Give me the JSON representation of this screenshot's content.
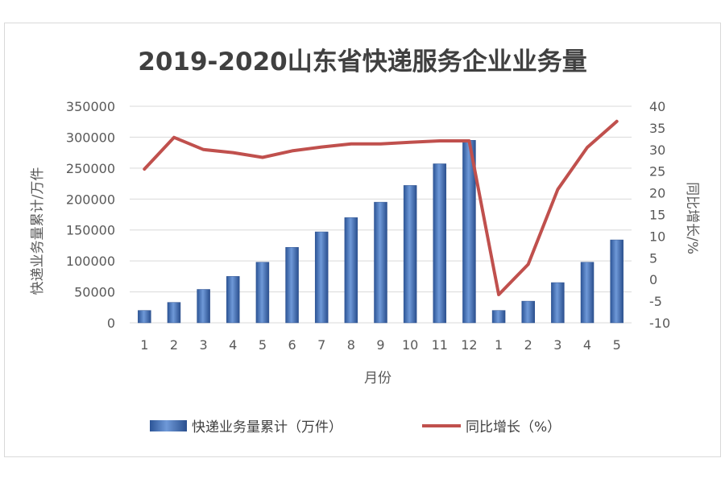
{
  "chart_data": {
    "type": "bar",
    "title": "2019-2020山东省快递服务企业业务量",
    "xlabel": "月份",
    "ylabel": "快递业务量累计/万件",
    "y2label": "同比增长/%",
    "categories": [
      "1",
      "2",
      "3",
      "4",
      "5",
      "6",
      "7",
      "8",
      "9",
      "10",
      "11",
      "12",
      "1",
      "2",
      "3",
      "4",
      "5"
    ],
    "ylim": [
      0,
      350000
    ],
    "yticks": [
      "0",
      "50000",
      "100000",
      "150000",
      "200000",
      "250000",
      "300000",
      "350000"
    ],
    "y2lim": [
      -10,
      40
    ],
    "y2ticks": [
      "-10",
      "-5",
      "0",
      "5",
      "10",
      "15",
      "20",
      "25",
      "30",
      "35",
      "40"
    ],
    "series": [
      {
        "name": "快递业务量累计（万件）",
        "type": "bar",
        "axis": "left",
        "color": "#4472c4",
        "values": [
          20000,
          33000,
          54000,
          75000,
          98000,
          122000,
          147000,
          170000,
          195000,
          222000,
          257000,
          295000,
          20000,
          35000,
          65000,
          98000,
          134000
        ]
      },
      {
        "name": "同比增长（%）",
        "type": "line",
        "axis": "right",
        "color": "#c0504d",
        "values": [
          25.5,
          32.8,
          30,
          29.3,
          28.2,
          29.7,
          30.6,
          31.3,
          31.3,
          31.7,
          32,
          32,
          -3.5,
          3.5,
          20.8,
          30.5,
          36.5
        ]
      }
    ],
    "grid": true,
    "legend_position": "bottom"
  }
}
